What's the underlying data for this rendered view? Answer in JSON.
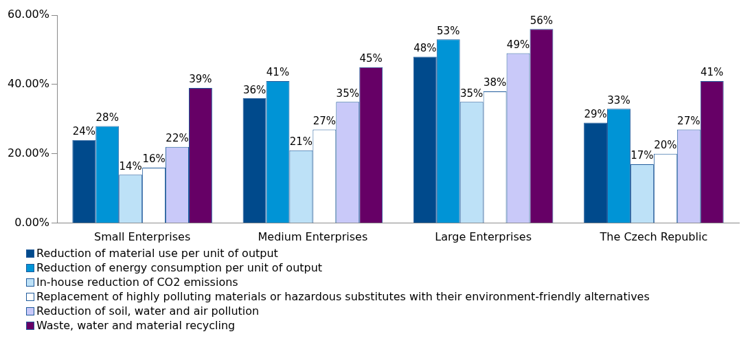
{
  "chart_data": {
    "type": "bar",
    "categories": [
      "Small Enterprises",
      "Medium Enterprises",
      "Large Enterprises",
      "The Czech Republic"
    ],
    "series": [
      {
        "name": "Reduction of material use per unit of output",
        "color": "#004a8c",
        "values": [
          24,
          36,
          48,
          29
        ],
        "value_labels": [
          "24%",
          "36%",
          "48%",
          "29%"
        ]
      },
      {
        "name": "Reduction of energy consumption per unit of output",
        "color": "#0094d6",
        "values": [
          28,
          41,
          53,
          33
        ],
        "value_labels": [
          "28%",
          "41%",
          "53%",
          "33%"
        ]
      },
      {
        "name": "In-house reduction of CO2 emissions",
        "color": "#bde1f7",
        "values": [
          14,
          21,
          35,
          17
        ],
        "value_labels": [
          "14%",
          "21%",
          "35%",
          "17%"
        ]
      },
      {
        "name": "Replacement of highly polluting materials or hazardous substitutes with their environment-friendly alternatives",
        "color": "#ffffff",
        "values": [
          16,
          27,
          38,
          20
        ],
        "value_labels": [
          "16%",
          "27%",
          "38%",
          "20%"
        ]
      },
      {
        "name": "Reduction of soil, water and air pollution",
        "color": "#c9c9f9",
        "values": [
          22,
          35,
          49,
          27
        ],
        "value_labels": [
          "22%",
          "35%",
          "49%",
          "27%"
        ]
      },
      {
        "name": "Waste, water and material recycling",
        "color": "#660066",
        "values": [
          39,
          45,
          56,
          41
        ],
        "value_labels": [
          "39%",
          "45%",
          "56%",
          "41%"
        ]
      }
    ],
    "ylim": [
      0,
      60
    ],
    "yticks": [
      {
        "value": 0,
        "label": "0.00%"
      },
      {
        "value": 20,
        "label": "20.00%"
      },
      {
        "value": 40,
        "label": "40.00%"
      },
      {
        "value": 60,
        "label": "60.00%"
      }
    ],
    "grid": false,
    "legend": "bottom"
  }
}
